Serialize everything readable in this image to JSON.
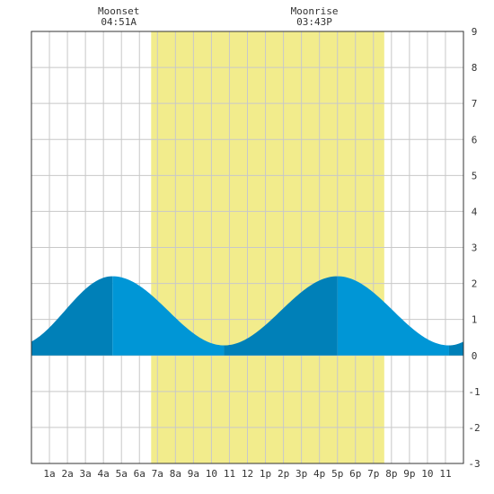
{
  "chart_data": {
    "type": "area",
    "title": "",
    "xlabel": "",
    "ylabel": "",
    "xlim": [
      0,
      24
    ],
    "ylim": [
      -3,
      9
    ],
    "grid": true,
    "x_tick_labels": [
      "1a",
      "2a",
      "3a",
      "4a",
      "5a",
      "6a",
      "7a",
      "8a",
      "9a",
      "10",
      "11",
      "12",
      "1p",
      "2p",
      "3p",
      "4p",
      "5p",
      "6p",
      "7p",
      "8p",
      "9p",
      "10",
      "11"
    ],
    "y_tick_labels": [
      "-3",
      "-2",
      "-1",
      "0",
      "1",
      "2",
      "3",
      "4",
      "5",
      "6",
      "7",
      "8",
      "9"
    ],
    "daylight": {
      "start_hour": 6.65,
      "end_hour": 19.6
    },
    "moon_events": [
      {
        "label": "Moonset",
        "time": "04:51A",
        "hour": 4.85
      },
      {
        "label": "Moonrise",
        "time": "03:43P",
        "hour": 15.72
      }
    ],
    "tide_extremes": [
      {
        "hour": 4.5,
        "height": 2.2,
        "type": "high"
      },
      {
        "hour": 10.7,
        "height": 0.28,
        "type": "low"
      },
      {
        "hour": 17.0,
        "height": 2.2,
        "type": "high"
      },
      {
        "hour": 23.2,
        "height": 0.28,
        "type": "low"
      }
    ],
    "colors": {
      "daylight": "#f2ec8c",
      "tide_rising": "#0080b8",
      "tide_falling": "#0096d6",
      "grid": "#c8c8c8",
      "axis": "#333333"
    }
  }
}
